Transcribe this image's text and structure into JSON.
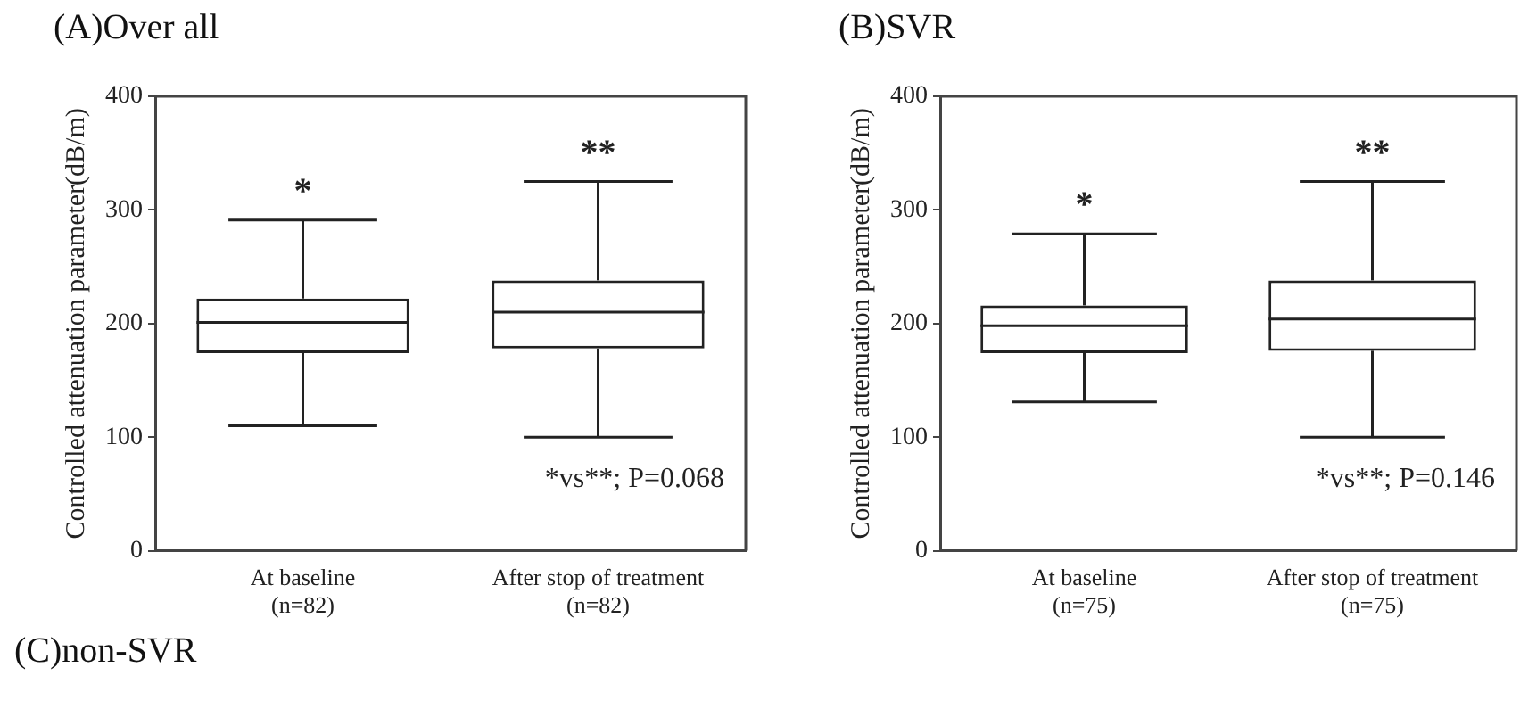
{
  "chart_data": [
    {
      "type": "box",
      "title": "(A)Over all",
      "ylabel": "Controlled attenuation parameter(dB/m)",
      "categories": [
        "At baseline\n(n=82)",
        "After stop of treatment\n(n=82)"
      ],
      "ylim": [
        0,
        400
      ],
      "yticks": [
        0,
        100,
        200,
        300,
        400
      ],
      "grid": false,
      "legend": false,
      "boxes": [
        {
          "low": 110,
          "q1": 174,
          "median": 201,
          "q3": 222,
          "high": 291
        },
        {
          "low": 100,
          "q1": 178,
          "median": 210,
          "q3": 238,
          "high": 325
        }
      ],
      "annotations": [
        "*",
        "**",
        "*vs**; P=0.068"
      ]
    },
    {
      "type": "box",
      "title": "(B)SVR",
      "ylabel": "Controlled attenuation parameter(dB/m)",
      "categories": [
        "At baseline\n(n=75)",
        "After stop of treatment\n(n=75)"
      ],
      "ylim": [
        0,
        400
      ],
      "yticks": [
        0,
        100,
        200,
        300,
        400
      ],
      "grid": false,
      "legend": false,
      "boxes": [
        {
          "low": 131,
          "q1": 174,
          "median": 198,
          "q3": 216,
          "high": 279
        },
        {
          "low": 100,
          "q1": 176,
          "median": 204,
          "q3": 238,
          "high": 325
        }
      ],
      "annotations": [
        "*",
        "**",
        "*vs**; P=0.146"
      ]
    },
    {
      "type": "other",
      "title": "(C)non-SVR"
    }
  ]
}
